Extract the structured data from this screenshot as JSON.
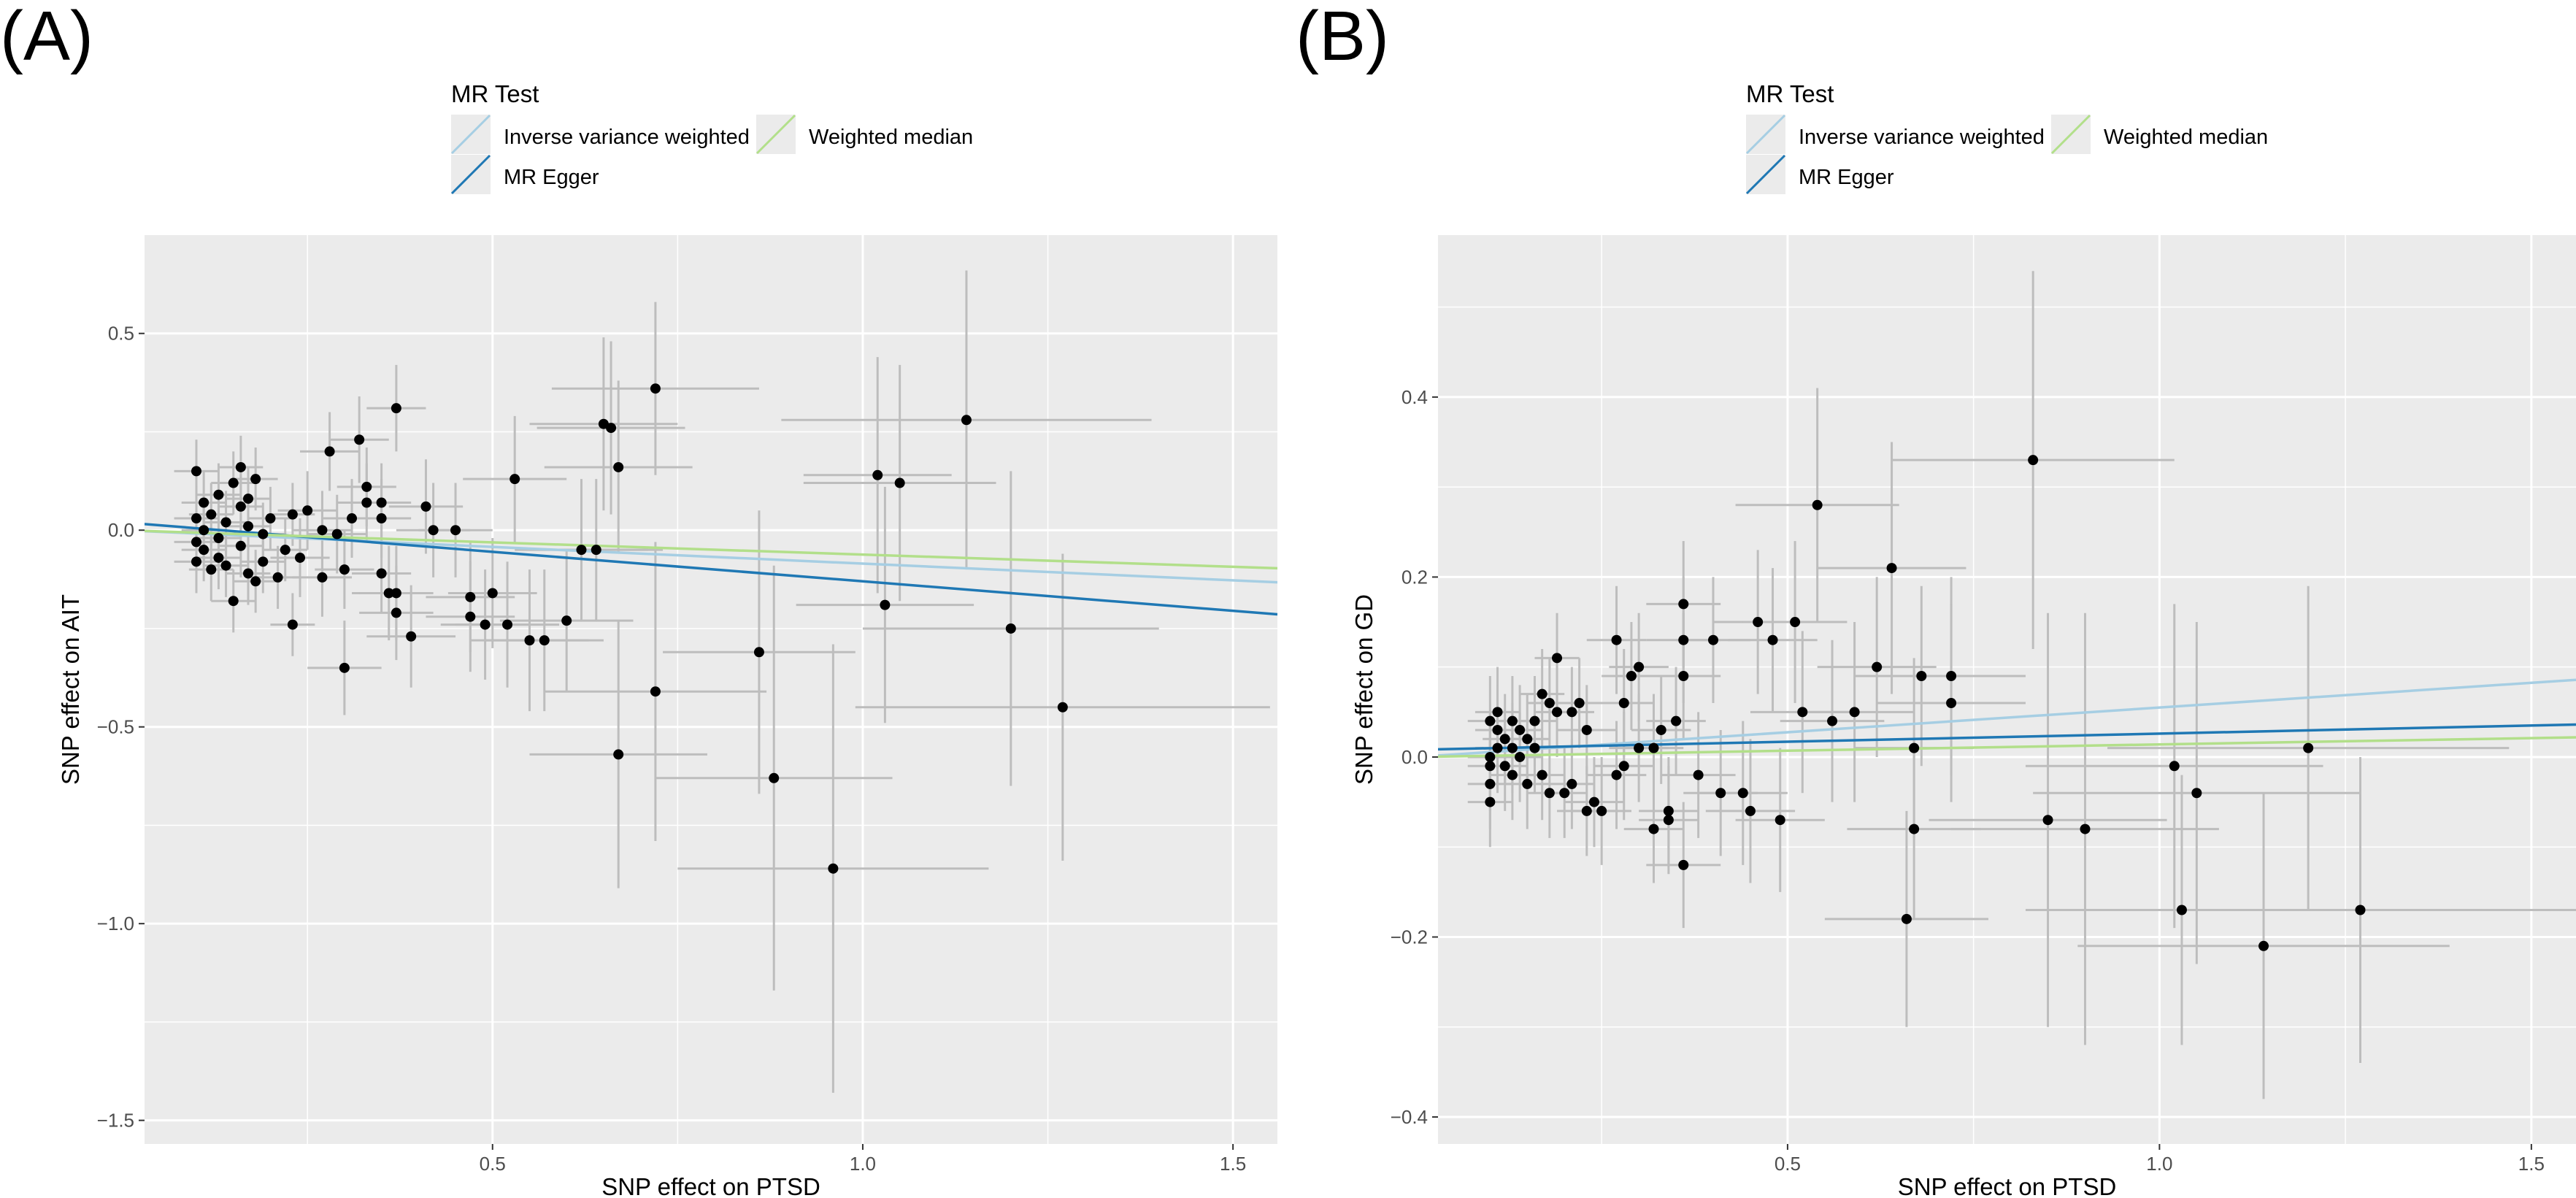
{
  "figure": {
    "legend_title": "MR Test",
    "legend_items": [
      {
        "label": "Inverse variance weighted",
        "color": "#a6cee3"
      },
      {
        "label": "MR Egger",
        "color": "#1f78b4"
      },
      {
        "label": "Weighted median",
        "color": "#b2df8a"
      }
    ],
    "colors": {
      "panel_bg": "#ebebeb",
      "grid": "#ffffff",
      "errorbar": "#bdbdbd",
      "point": "#000000"
    }
  },
  "chart_data": [
    {
      "type": "scatter",
      "panel_label": "(A)",
      "title": "",
      "xlabel": "SNP effect on PTSD",
      "ylabel": "SNP effect on AIT",
      "xlim": [
        0.03,
        1.56
      ],
      "ylim": [
        -1.56,
        0.75
      ],
      "xticks": [
        0.5,
        1.0,
        1.5
      ],
      "xtick_labels": [
        "0.5",
        "1.0",
        "1.5"
      ],
      "yticks": [
        -1.5,
        -1.0,
        -0.5,
        0.0,
        0.5
      ],
      "ytick_labels": [
        "−1.5",
        "−1.0",
        "−0.5",
        "0.0",
        "0.5"
      ],
      "grid": true,
      "legend_position": "top",
      "lines": [
        {
          "name": "Inverse variance weighted",
          "intercept": 0.0,
          "slope": -0.085
        },
        {
          "name": "MR Egger",
          "intercept": 0.02,
          "slope": -0.15
        },
        {
          "name": "Weighted median",
          "intercept": 0.0,
          "slope": -0.062
        }
      ],
      "points": [
        [
          0.1,
          0.15,
          0.03,
          0.08
        ],
        [
          0.1,
          0.03,
          0.03,
          0.08
        ],
        [
          0.1,
          -0.03,
          0.03,
          0.08
        ],
        [
          0.1,
          -0.08,
          0.03,
          0.08
        ],
        [
          0.11,
          0.07,
          0.03,
          0.08
        ],
        [
          0.11,
          0.0,
          0.03,
          0.08
        ],
        [
          0.11,
          -0.05,
          0.03,
          0.08
        ],
        [
          0.12,
          0.04,
          0.03,
          0.08
        ],
        [
          0.12,
          -0.1,
          0.03,
          0.08
        ],
        [
          0.13,
          0.09,
          0.03,
          0.08
        ],
        [
          0.13,
          -0.02,
          0.03,
          0.08
        ],
        [
          0.13,
          -0.07,
          0.03,
          0.08
        ],
        [
          0.14,
          0.02,
          0.03,
          0.08
        ],
        [
          0.14,
          -0.09,
          0.03,
          0.08
        ],
        [
          0.15,
          0.12,
          0.03,
          0.08
        ],
        [
          0.15,
          -0.18,
          0.03,
          0.08
        ],
        [
          0.16,
          0.06,
          0.03,
          0.08
        ],
        [
          0.16,
          -0.04,
          0.03,
          0.08
        ],
        [
          0.16,
          0.16,
          0.03,
          0.08
        ],
        [
          0.17,
          0.01,
          0.03,
          0.08
        ],
        [
          0.17,
          -0.11,
          0.03,
          0.08
        ],
        [
          0.17,
          0.08,
          0.03,
          0.08
        ],
        [
          0.18,
          -0.13,
          0.03,
          0.08
        ],
        [
          0.18,
          0.13,
          0.03,
          0.08
        ],
        [
          0.19,
          -0.01,
          0.03,
          0.08
        ],
        [
          0.19,
          -0.08,
          0.03,
          0.08
        ],
        [
          0.2,
          0.03,
          0.03,
          0.08
        ],
        [
          0.21,
          -0.12,
          0.03,
          0.08
        ],
        [
          0.22,
          -0.05,
          0.03,
          0.08
        ],
        [
          0.23,
          0.04,
          0.03,
          0.08
        ],
        [
          0.23,
          -0.24,
          0.03,
          0.08
        ],
        [
          0.24,
          -0.07,
          0.04,
          0.1
        ],
        [
          0.25,
          0.05,
          0.04,
          0.1
        ],
        [
          0.27,
          -0.12,
          0.04,
          0.1
        ],
        [
          0.27,
          0.0,
          0.04,
          0.1
        ],
        [
          0.28,
          0.2,
          0.04,
          0.1
        ],
        [
          0.29,
          -0.01,
          0.04,
          0.1
        ],
        [
          0.3,
          -0.35,
          0.05,
          0.12
        ],
        [
          0.3,
          -0.1,
          0.04,
          0.1
        ],
        [
          0.31,
          0.03,
          0.04,
          0.1
        ],
        [
          0.32,
          0.23,
          0.04,
          0.11
        ],
        [
          0.33,
          0.07,
          0.04,
          0.1
        ],
        [
          0.33,
          0.11,
          0.04,
          0.1
        ],
        [
          0.35,
          0.07,
          0.04,
          0.1
        ],
        [
          0.35,
          0.03,
          0.04,
          0.1
        ],
        [
          0.35,
          -0.11,
          0.04,
          0.1
        ],
        [
          0.36,
          -0.16,
          0.05,
          0.12
        ],
        [
          0.37,
          0.31,
          0.04,
          0.11
        ],
        [
          0.37,
          -0.16,
          0.05,
          0.12
        ],
        [
          0.37,
          -0.21,
          0.05,
          0.12
        ],
        [
          0.39,
          -0.27,
          0.06,
          0.13
        ],
        [
          0.41,
          0.06,
          0.05,
          0.12
        ],
        [
          0.42,
          0.0,
          0.05,
          0.12
        ],
        [
          0.45,
          0.0,
          0.05,
          0.12
        ],
        [
          0.47,
          -0.17,
          0.06,
          0.14
        ],
        [
          0.47,
          -0.22,
          0.06,
          0.14
        ],
        [
          0.49,
          -0.24,
          0.06,
          0.14
        ],
        [
          0.5,
          -0.16,
          0.06,
          0.14
        ],
        [
          0.52,
          -0.24,
          0.07,
          0.16
        ],
        [
          0.53,
          0.13,
          0.07,
          0.16
        ],
        [
          0.55,
          -0.28,
          0.08,
          0.18
        ],
        [
          0.57,
          -0.28,
          0.08,
          0.18
        ],
        [
          0.6,
          -0.23,
          0.09,
          0.18
        ],
        [
          0.62,
          -0.05,
          0.09,
          0.18
        ],
        [
          0.64,
          -0.05,
          0.09,
          0.18
        ],
        [
          0.65,
          0.27,
          0.1,
          0.22
        ],
        [
          0.66,
          0.26,
          0.1,
          0.22
        ],
        [
          0.67,
          0.16,
          0.1,
          0.22
        ],
        [
          0.67,
          -0.57,
          0.12,
          0.34
        ],
        [
          0.72,
          0.36,
          0.14,
          0.22
        ],
        [
          0.72,
          -0.41,
          0.15,
          0.38
        ],
        [
          0.86,
          -0.31,
          0.13,
          0.36
        ],
        [
          0.88,
          -0.63,
          0.16,
          0.54
        ],
        [
          0.96,
          -0.86,
          0.21,
          0.57
        ],
        [
          1.02,
          0.14,
          0.1,
          0.3
        ],
        [
          1.03,
          -0.19,
          0.12,
          0.3
        ],
        [
          1.05,
          0.12,
          0.13,
          0.3
        ],
        [
          1.14,
          0.28,
          0.25,
          0.38
        ],
        [
          1.2,
          -0.25,
          0.2,
          0.4
        ],
        [
          1.27,
          -0.45,
          0.28,
          0.39
        ]
      ]
    },
    {
      "type": "scatter",
      "panel_label": "(B)",
      "title": "",
      "xlabel": "SNP effect on PTSD",
      "ylabel": "SNP effect on GD",
      "xlim": [
        0.03,
        1.56
      ],
      "ylim": [
        -0.43,
        0.58
      ],
      "xticks": [
        0.5,
        1.0,
        1.5
      ],
      "xtick_labels": [
        "0.5",
        "1.0",
        "1.5"
      ],
      "yticks": [
        -0.4,
        -0.2,
        0.0,
        0.2,
        0.4
      ],
      "ytick_labels": [
        "−0.4",
        "−0.2",
        "0.0",
        "0.2",
        "0.4"
      ],
      "grid": true,
      "legend_position": "top",
      "lines": [
        {
          "name": "Inverse variance weighted",
          "intercept": 0.0,
          "slope": 0.055
        },
        {
          "name": "MR Egger",
          "intercept": 0.008,
          "slope": 0.018
        },
        {
          "name": "Weighted median",
          "intercept": 0.0,
          "slope": 0.014
        }
      ],
      "points": [
        [
          0.1,
          0.04,
          0.03,
          0.05
        ],
        [
          0.1,
          0.0,
          0.03,
          0.05
        ],
        [
          0.1,
          -0.01,
          0.03,
          0.05
        ],
        [
          0.1,
          -0.03,
          0.03,
          0.05
        ],
        [
          0.1,
          -0.05,
          0.03,
          0.05
        ],
        [
          0.11,
          0.05,
          0.03,
          0.05
        ],
        [
          0.11,
          0.03,
          0.03,
          0.05
        ],
        [
          0.11,
          0.01,
          0.03,
          0.05
        ],
        [
          0.12,
          0.02,
          0.03,
          0.05
        ],
        [
          0.12,
          -0.01,
          0.03,
          0.05
        ],
        [
          0.13,
          0.04,
          0.03,
          0.05
        ],
        [
          0.13,
          0.01,
          0.03,
          0.05
        ],
        [
          0.13,
          -0.02,
          0.03,
          0.05
        ],
        [
          0.14,
          0.03,
          0.03,
          0.05
        ],
        [
          0.14,
          0.0,
          0.03,
          0.05
        ],
        [
          0.15,
          0.02,
          0.03,
          0.05
        ],
        [
          0.15,
          -0.03,
          0.03,
          0.05
        ],
        [
          0.16,
          0.04,
          0.03,
          0.05
        ],
        [
          0.16,
          0.01,
          0.03,
          0.05
        ],
        [
          0.17,
          0.07,
          0.03,
          0.05
        ],
        [
          0.17,
          -0.02,
          0.03,
          0.05
        ],
        [
          0.18,
          0.06,
          0.03,
          0.05
        ],
        [
          0.18,
          -0.04,
          0.03,
          0.05
        ],
        [
          0.19,
          0.11,
          0.03,
          0.05
        ],
        [
          0.19,
          0.05,
          0.03,
          0.05
        ],
        [
          0.2,
          -0.04,
          0.03,
          0.05
        ],
        [
          0.21,
          0.05,
          0.03,
          0.05
        ],
        [
          0.21,
          -0.03,
          0.03,
          0.05
        ],
        [
          0.22,
          0.06,
          0.03,
          0.05
        ],
        [
          0.23,
          -0.06,
          0.04,
          0.05
        ],
        [
          0.23,
          0.03,
          0.04,
          0.05
        ],
        [
          0.24,
          -0.05,
          0.04,
          0.05
        ],
        [
          0.25,
          -0.06,
          0.04,
          0.06
        ],
        [
          0.27,
          0.13,
          0.04,
          0.06
        ],
        [
          0.27,
          -0.02,
          0.04,
          0.06
        ],
        [
          0.28,
          0.06,
          0.04,
          0.06
        ],
        [
          0.28,
          -0.01,
          0.04,
          0.06
        ],
        [
          0.29,
          0.09,
          0.04,
          0.06
        ],
        [
          0.3,
          0.1,
          0.04,
          0.06
        ],
        [
          0.3,
          0.01,
          0.04,
          0.06
        ],
        [
          0.32,
          -0.08,
          0.04,
          0.06
        ],
        [
          0.32,
          0.01,
          0.04,
          0.06
        ],
        [
          0.33,
          0.03,
          0.04,
          0.06
        ],
        [
          0.34,
          -0.06,
          0.04,
          0.06
        ],
        [
          0.34,
          -0.07,
          0.04,
          0.06
        ],
        [
          0.35,
          0.04,
          0.04,
          0.06
        ],
        [
          0.36,
          0.17,
          0.05,
          0.07
        ],
        [
          0.36,
          0.13,
          0.05,
          0.07
        ],
        [
          0.36,
          0.09,
          0.05,
          0.07
        ],
        [
          0.36,
          -0.12,
          0.05,
          0.07
        ],
        [
          0.38,
          -0.02,
          0.05,
          0.07
        ],
        [
          0.4,
          0.13,
          0.05,
          0.07
        ],
        [
          0.41,
          -0.04,
          0.05,
          0.07
        ],
        [
          0.44,
          -0.04,
          0.06,
          0.08
        ],
        [
          0.45,
          -0.06,
          0.06,
          0.08
        ],
        [
          0.46,
          0.15,
          0.06,
          0.08
        ],
        [
          0.48,
          0.13,
          0.06,
          0.08
        ],
        [
          0.49,
          -0.07,
          0.06,
          0.08
        ],
        [
          0.51,
          0.15,
          0.07,
          0.09
        ],
        [
          0.52,
          0.05,
          0.07,
          0.09
        ],
        [
          0.54,
          0.28,
          0.11,
          0.13
        ],
        [
          0.56,
          0.04,
          0.07,
          0.09
        ],
        [
          0.59,
          0.05,
          0.08,
          0.1
        ],
        [
          0.62,
          0.1,
          0.08,
          0.1
        ],
        [
          0.64,
          0.21,
          0.1,
          0.14
        ],
        [
          0.66,
          -0.18,
          0.11,
          0.12
        ],
        [
          0.67,
          0.01,
          0.08,
          0.1
        ],
        [
          0.67,
          -0.08,
          0.09,
          0.1
        ],
        [
          0.68,
          0.09,
          0.09,
          0.1
        ],
        [
          0.72,
          0.09,
          0.1,
          0.11
        ],
        [
          0.72,
          0.06,
          0.1,
          0.11
        ],
        [
          0.83,
          0.33,
          0.19,
          0.21
        ],
        [
          0.85,
          -0.07,
          0.16,
          0.23
        ],
        [
          0.9,
          -0.08,
          0.18,
          0.24
        ],
        [
          1.02,
          -0.01,
          0.2,
          0.18
        ],
        [
          1.03,
          -0.17,
          0.21,
          0.15
        ],
        [
          1.05,
          -0.04,
          0.22,
          0.19
        ],
        [
          1.14,
          -0.21,
          0.25,
          0.17
        ],
        [
          1.2,
          0.01,
          0.27,
          0.18
        ],
        [
          1.27,
          -0.17,
          0.29,
          0.17
        ]
      ]
    }
  ]
}
